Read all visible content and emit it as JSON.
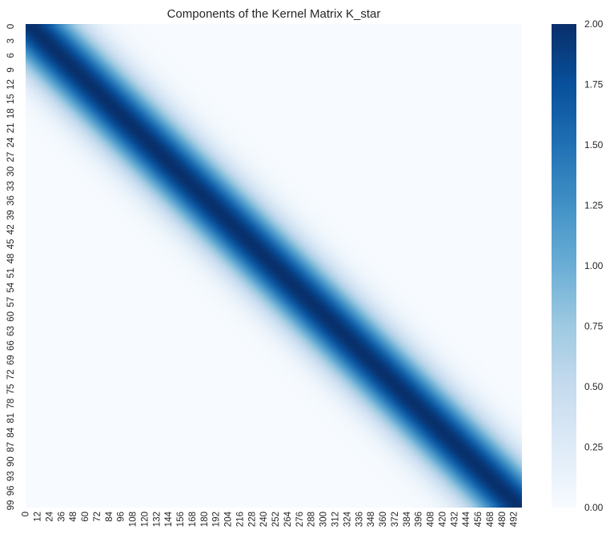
{
  "chart_data": {
    "type": "heatmap",
    "title": "Components of the Kernel Matrix K_star",
    "xlabel": "",
    "ylabel": "",
    "rows": 100,
    "cols": 500,
    "x_tick_labels": [
      "0",
      "12",
      "24",
      "36",
      "48",
      "60",
      "72",
      "84",
      "96",
      "108",
      "120",
      "132",
      "144",
      "156",
      "168",
      "180",
      "192",
      "204",
      "216",
      "228",
      "240",
      "252",
      "264",
      "276",
      "288",
      "300",
      "312",
      "324",
      "336",
      "348",
      "360",
      "372",
      "384",
      "396",
      "408",
      "420",
      "432",
      "444",
      "456",
      "468",
      "480",
      "492"
    ],
    "y_tick_labels": [
      "0",
      "3",
      "6",
      "9",
      "12",
      "15",
      "18",
      "21",
      "24",
      "27",
      "30",
      "33",
      "36",
      "39",
      "42",
      "45",
      "48",
      "51",
      "54",
      "57",
      "60",
      "63",
      "66",
      "69",
      "72",
      "75",
      "78",
      "81",
      "84",
      "87",
      "90",
      "93",
      "96",
      "99"
    ],
    "x_tick_step": 12,
    "y_tick_step": 3,
    "value_range": [
      0,
      2
    ],
    "diagonal": {
      "peak_value": 2.0,
      "center_col_at_row_0": 5,
      "center_col_at_row_99": 495,
      "falloff_sigma_cols": 32
    },
    "colorbar": {
      "min": 0,
      "max": 2,
      "ticks": [
        "0.00",
        "0.25",
        "0.50",
        "0.75",
        "1.00",
        "1.25",
        "1.50",
        "1.75",
        "2.00"
      ],
      "colormap": "Blues",
      "colormap_stops": [
        "#f7fbff",
        "#deebf7",
        "#c6dbef",
        "#9ecae1",
        "#6baed6",
        "#4292c6",
        "#2171b5",
        "#08519c",
        "#08306b"
      ]
    },
    "grid": false
  }
}
